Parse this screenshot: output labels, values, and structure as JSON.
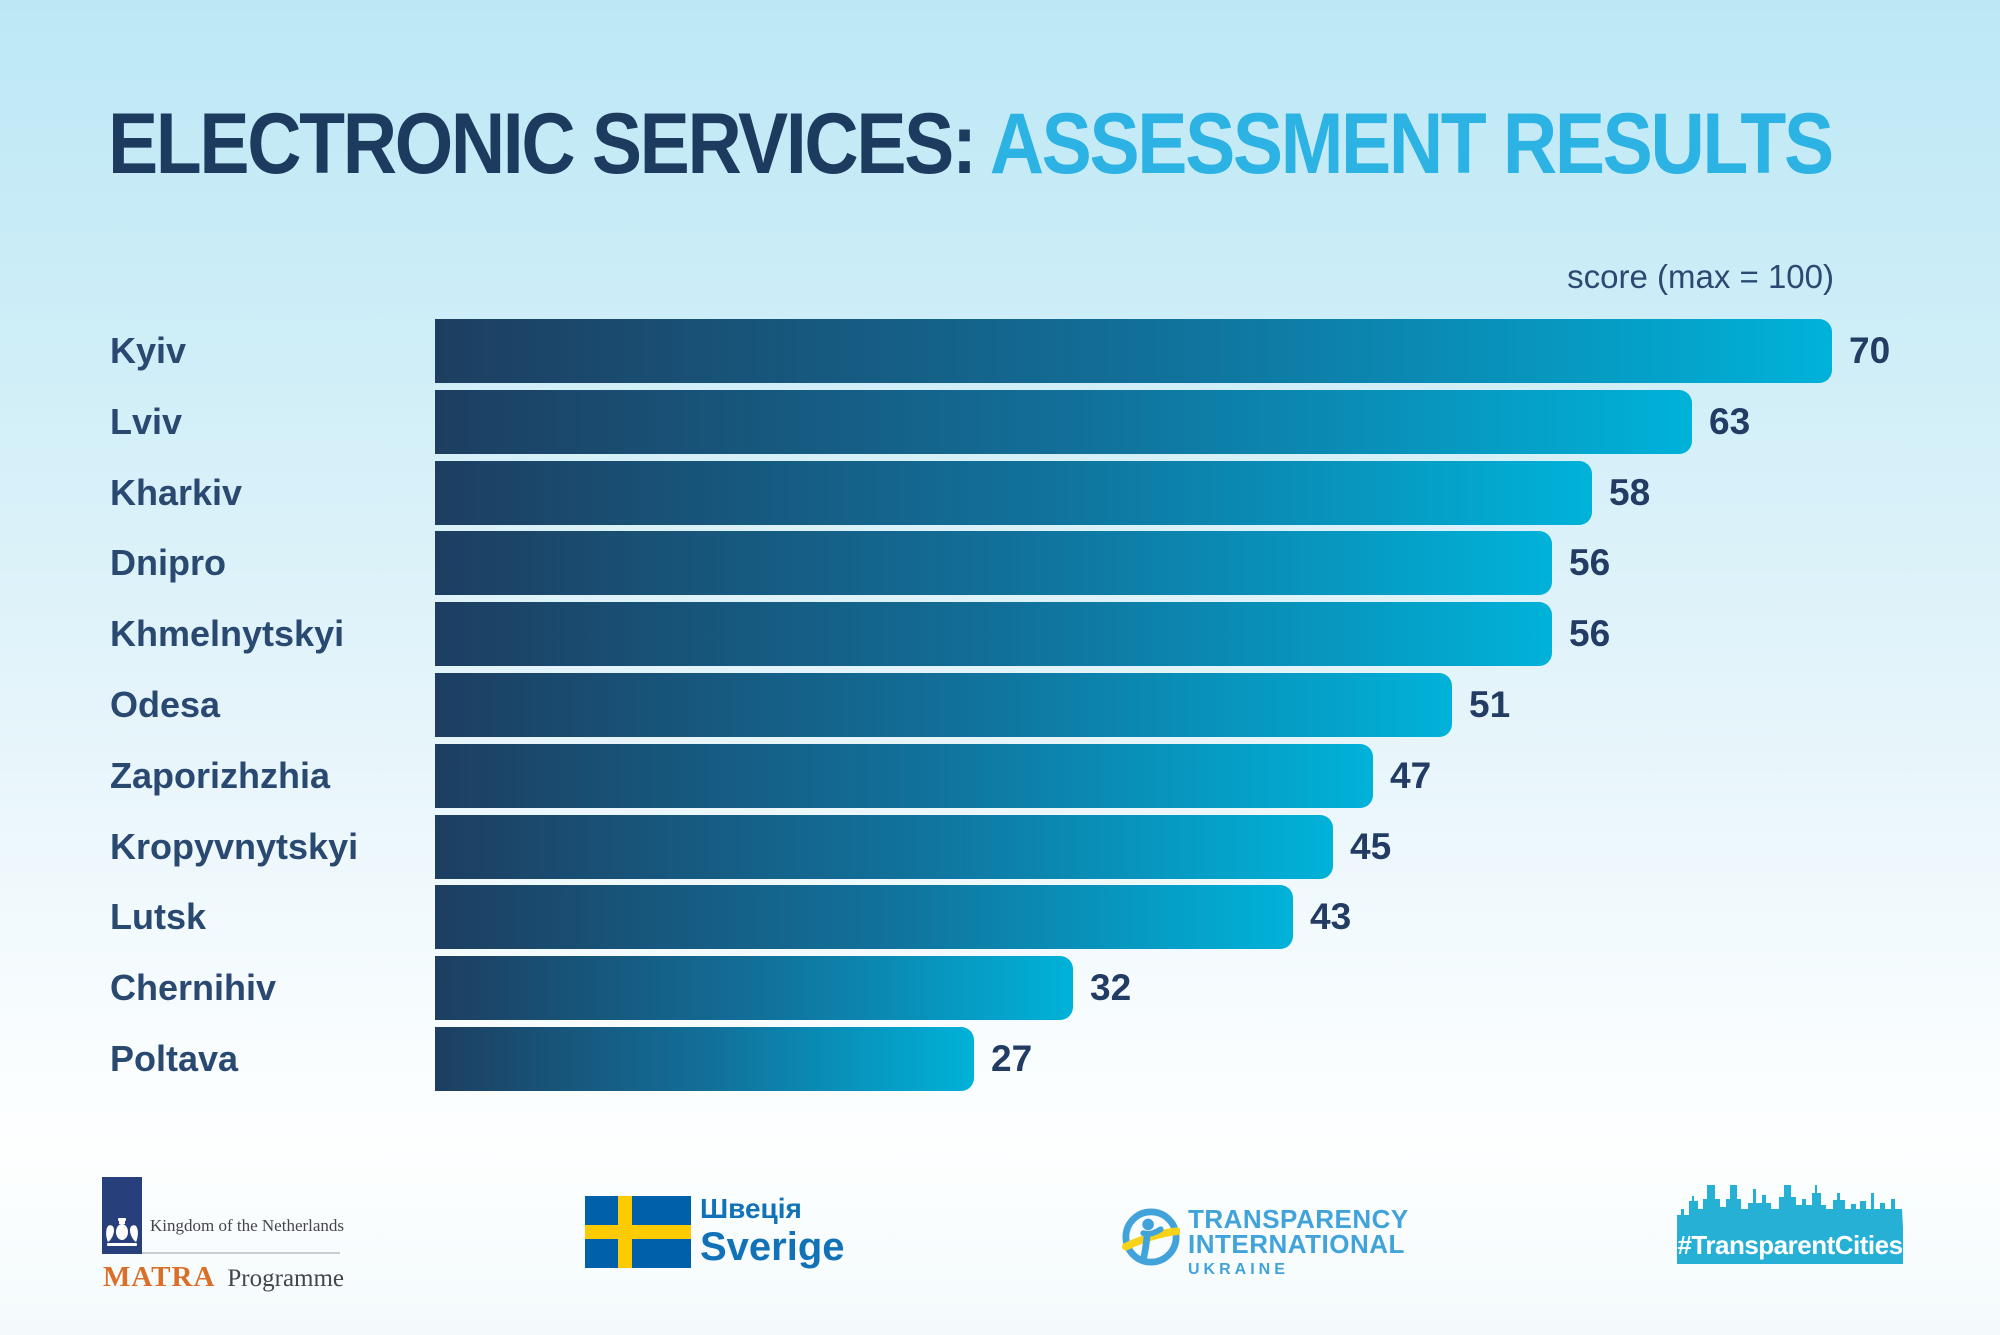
{
  "title": {
    "part1": "ELECTRONIC SERVICES:",
    "part2": "ASSESSMENT RESULTS"
  },
  "chart_data": {
    "type": "bar",
    "orientation": "horizontal",
    "title": "Electronic services: assessment results",
    "axis_note": "score (max = 100)",
    "xlim": [
      0,
      100
    ],
    "grid": false,
    "legend": "none",
    "categories": [
      "Kyiv",
      "Lviv",
      "Kharkiv",
      "Dnipro",
      "Khmelnytskyi",
      "Odesa",
      "Zaporizhzhia",
      "Kropyvnytskyi",
      "Lutsk",
      "Chernihiv",
      "Poltava"
    ],
    "values": [
      70,
      63,
      58,
      56,
      56,
      51,
      47,
      45,
      43,
      32,
      27
    ],
    "bar_gradient": [
      "#1d3e60",
      "#00b2d9"
    ]
  },
  "colors": {
    "title_primary": "#1d3a5f",
    "title_accent": "#2db3e3",
    "bar_start": "#1d3e60",
    "bar_end": "#00b2d9",
    "city_label": "#2a4971",
    "value_label": "#223c63",
    "axis_note": "#2b4a71"
  },
  "footer": {
    "netherlands": {
      "title": "Kingdom of the Netherlands",
      "programme_name": "MATRA",
      "programme_suffix": "Programme"
    },
    "sweden": {
      "name_uk": "Швеція",
      "name_sv": "Sverige"
    },
    "transparency_international": {
      "line1": "TRANSPARENCY",
      "line2": "INTERNATIONAL",
      "line3": "UKRAINE"
    },
    "transparent_cities": {
      "hashtag": "#TransparentCities"
    }
  }
}
